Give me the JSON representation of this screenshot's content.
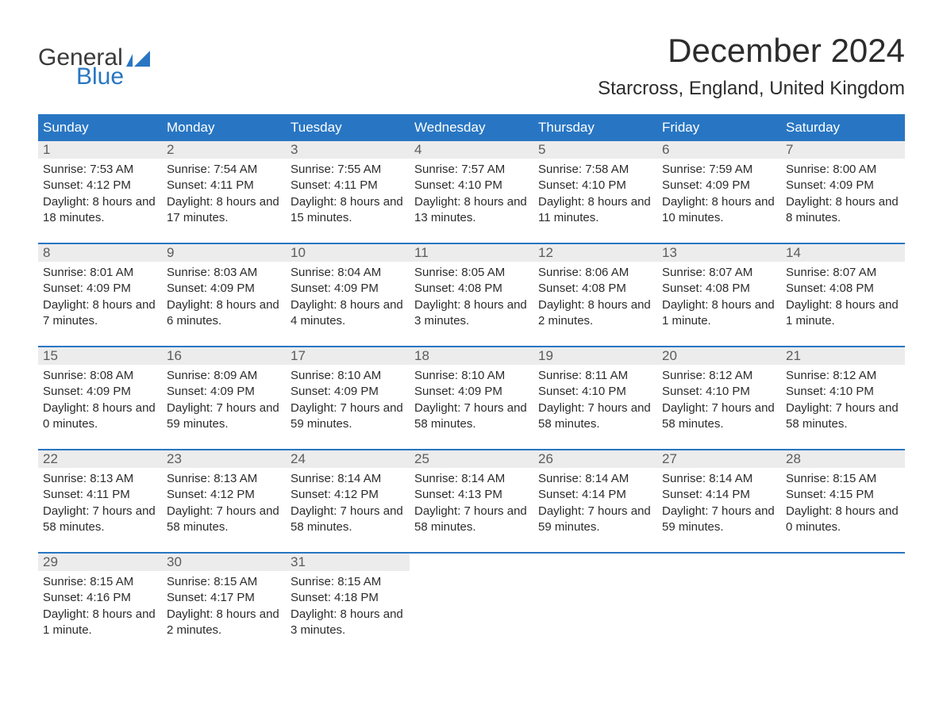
{
  "brand": {
    "general": "General",
    "blue": "Blue"
  },
  "title": "December 2024",
  "location": "Starcross, England, United Kingdom",
  "colors": {
    "header_bg": "#2876c3",
    "header_text": "#ffffff",
    "daynum_bg": "#ececec",
    "daynum_text": "#5c5c5c",
    "body_text": "#2c2c2c",
    "logo_general": "#3a3a3a",
    "logo_blue": "#2876c3",
    "row_border": "#2876c3"
  },
  "weekdays": [
    "Sunday",
    "Monday",
    "Tuesday",
    "Wednesday",
    "Thursday",
    "Friday",
    "Saturday"
  ],
  "days": [
    {
      "n": "1",
      "sunrise": "7:53 AM",
      "sunset": "4:12 PM",
      "daylight": "8 hours and 18 minutes."
    },
    {
      "n": "2",
      "sunrise": "7:54 AM",
      "sunset": "4:11 PM",
      "daylight": "8 hours and 17 minutes."
    },
    {
      "n": "3",
      "sunrise": "7:55 AM",
      "sunset": "4:11 PM",
      "daylight": "8 hours and 15 minutes."
    },
    {
      "n": "4",
      "sunrise": "7:57 AM",
      "sunset": "4:10 PM",
      "daylight": "8 hours and 13 minutes."
    },
    {
      "n": "5",
      "sunrise": "7:58 AM",
      "sunset": "4:10 PM",
      "daylight": "8 hours and 11 minutes."
    },
    {
      "n": "6",
      "sunrise": "7:59 AM",
      "sunset": "4:09 PM",
      "daylight": "8 hours and 10 minutes."
    },
    {
      "n": "7",
      "sunrise": "8:00 AM",
      "sunset": "4:09 PM",
      "daylight": "8 hours and 8 minutes."
    },
    {
      "n": "8",
      "sunrise": "8:01 AM",
      "sunset": "4:09 PM",
      "daylight": "8 hours and 7 minutes."
    },
    {
      "n": "9",
      "sunrise": "8:03 AM",
      "sunset": "4:09 PM",
      "daylight": "8 hours and 6 minutes."
    },
    {
      "n": "10",
      "sunrise": "8:04 AM",
      "sunset": "4:09 PM",
      "daylight": "8 hours and 4 minutes."
    },
    {
      "n": "11",
      "sunrise": "8:05 AM",
      "sunset": "4:08 PM",
      "daylight": "8 hours and 3 minutes."
    },
    {
      "n": "12",
      "sunrise": "8:06 AM",
      "sunset": "4:08 PM",
      "daylight": "8 hours and 2 minutes."
    },
    {
      "n": "13",
      "sunrise": "8:07 AM",
      "sunset": "4:08 PM",
      "daylight": "8 hours and 1 minute."
    },
    {
      "n": "14",
      "sunrise": "8:07 AM",
      "sunset": "4:08 PM",
      "daylight": "8 hours and 1 minute."
    },
    {
      "n": "15",
      "sunrise": "8:08 AM",
      "sunset": "4:09 PM",
      "daylight": "8 hours and 0 minutes."
    },
    {
      "n": "16",
      "sunrise": "8:09 AM",
      "sunset": "4:09 PM",
      "daylight": "7 hours and 59 minutes."
    },
    {
      "n": "17",
      "sunrise": "8:10 AM",
      "sunset": "4:09 PM",
      "daylight": "7 hours and 59 minutes."
    },
    {
      "n": "18",
      "sunrise": "8:10 AM",
      "sunset": "4:09 PM",
      "daylight": "7 hours and 58 minutes."
    },
    {
      "n": "19",
      "sunrise": "8:11 AM",
      "sunset": "4:10 PM",
      "daylight": "7 hours and 58 minutes."
    },
    {
      "n": "20",
      "sunrise": "8:12 AM",
      "sunset": "4:10 PM",
      "daylight": "7 hours and 58 minutes."
    },
    {
      "n": "21",
      "sunrise": "8:12 AM",
      "sunset": "4:10 PM",
      "daylight": "7 hours and 58 minutes."
    },
    {
      "n": "22",
      "sunrise": "8:13 AM",
      "sunset": "4:11 PM",
      "daylight": "7 hours and 58 minutes."
    },
    {
      "n": "23",
      "sunrise": "8:13 AM",
      "sunset": "4:12 PM",
      "daylight": "7 hours and 58 minutes."
    },
    {
      "n": "24",
      "sunrise": "8:14 AM",
      "sunset": "4:12 PM",
      "daylight": "7 hours and 58 minutes."
    },
    {
      "n": "25",
      "sunrise": "8:14 AM",
      "sunset": "4:13 PM",
      "daylight": "7 hours and 58 minutes."
    },
    {
      "n": "26",
      "sunrise": "8:14 AM",
      "sunset": "4:14 PM",
      "daylight": "7 hours and 59 minutes."
    },
    {
      "n": "27",
      "sunrise": "8:14 AM",
      "sunset": "4:14 PM",
      "daylight": "7 hours and 59 minutes."
    },
    {
      "n": "28",
      "sunrise": "8:15 AM",
      "sunset": "4:15 PM",
      "daylight": "8 hours and 0 minutes."
    },
    {
      "n": "29",
      "sunrise": "8:15 AM",
      "sunset": "4:16 PM",
      "daylight": "8 hours and 1 minute."
    },
    {
      "n": "30",
      "sunrise": "8:15 AM",
      "sunset": "4:17 PM",
      "daylight": "8 hours and 2 minutes."
    },
    {
      "n": "31",
      "sunrise": "8:15 AM",
      "sunset": "4:18 PM",
      "daylight": "8 hours and 3 minutes."
    }
  ],
  "labels": {
    "sunrise": "Sunrise:",
    "sunset": "Sunset:",
    "daylight": "Daylight:"
  },
  "layout": {
    "columns": 7,
    "trailing_empty": 4
  }
}
